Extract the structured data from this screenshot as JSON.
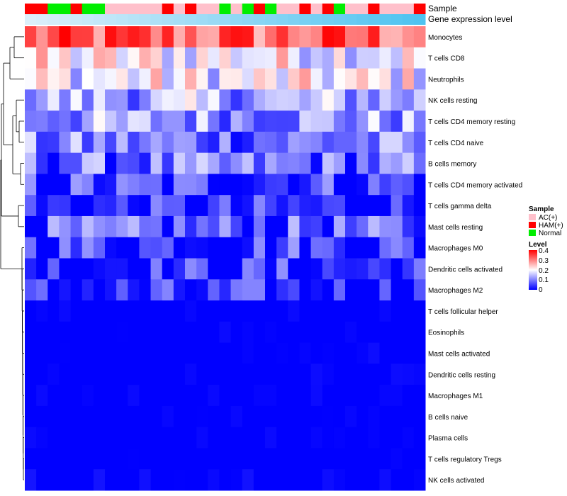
{
  "chart_data": {
    "type": "heatmap",
    "annotation_rows": [
      "Sample",
      "Gene expression level"
    ],
    "sample_groups": [
      "AC(+)",
      "HAM(+)",
      "Normal"
    ],
    "sample_colors": {
      "AC(+)": "#FFC0CB",
      "HAM(+)": "#FF0000",
      "Normal": "#00EE00"
    },
    "samples": [
      "HAM(+)",
      "HAM(+)",
      "Normal",
      "Normal",
      "HAM(+)",
      "Normal",
      "Normal",
      "AC(+)",
      "AC(+)",
      "AC(+)",
      "AC(+)",
      "AC(+)",
      "HAM(+)",
      "AC(+)",
      "HAM(+)",
      "AC(+)",
      "AC(+)",
      "Normal",
      "AC(+)",
      "Normal",
      "HAM(+)",
      "Normal",
      "AC(+)",
      "AC(+)",
      "HAM(+)",
      "AC(+)",
      "HAM(+)",
      "Normal",
      "AC(+)",
      "AC(+)",
      "HAM(+)",
      "AC(+)",
      "AC(+)",
      "AC(+)",
      "HAM(+)"
    ],
    "expression_gradient": [
      "#DCEFFA",
      "#4FC3F0"
    ],
    "cell_types": [
      "Monocytes",
      "T cells CD8",
      "Neutrophils",
      "NK cells resting",
      "T cells CD4 memory resting",
      "T cells CD4 naive",
      "B cells memory",
      "T cells CD4 memory activated",
      "T cells gamma delta",
      "Mast cells resting",
      "Macrophages M0",
      "Dendritic cells activated",
      "Macrophages M2",
      "T cells follicular helper",
      "Eosinophils",
      "Mast cells activated",
      "Dendritic cells resting",
      "Macrophages M1",
      "B cells naive",
      "Plasma cells",
      "T cells regulatory  Tregs",
      "NK cells activated"
    ],
    "row_base_levels": [
      0.32,
      0.2,
      0.19,
      0.13,
      0.12,
      0.09,
      0.08,
      0.05,
      0.02,
      0.06,
      0.05,
      0.03,
      0.02,
      0.0,
      0.0,
      0.0,
      0.0,
      0.0,
      0.0,
      0.0,
      0.0,
      0.01
    ],
    "legend": {
      "sample_title": "Sample",
      "level_title": "Level",
      "level_ticks": [
        "0.4",
        "0.3",
        "0.2",
        "0.1",
        "0"
      ],
      "level_range": [
        0,
        0.4
      ],
      "level_colors": [
        "#0000FF",
        "#FFFFFF",
        "#FF0000"
      ]
    },
    "has_row_dendrogram": true
  }
}
